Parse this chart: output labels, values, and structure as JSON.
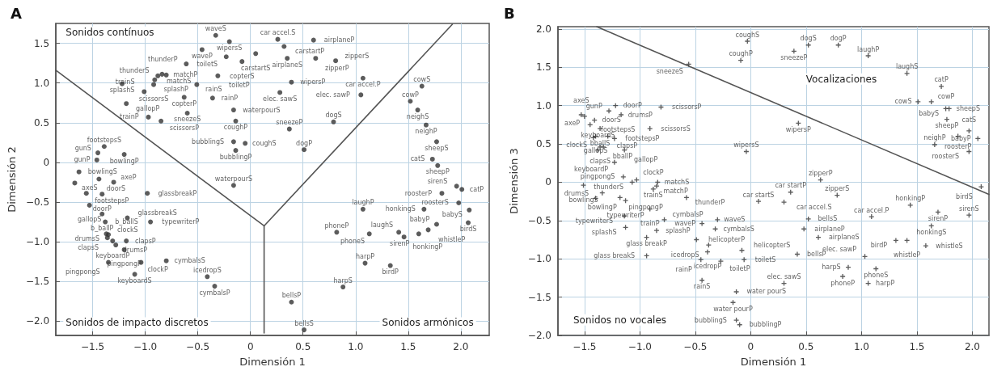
{
  "chart_data": [
    {
      "type": "scatter",
      "title": "A",
      "xlabel": "Dimensión 1",
      "ylabel": "Dimensión 2",
      "marker": "circle",
      "grid": true,
      "xlim": [
        -1.85,
        2.27
      ],
      "ylim": [
        -2.18,
        1.75
      ],
      "xticks": [
        {
          "value": -1.5,
          "label": "−1.5"
        },
        {
          "value": -1,
          "label": "−1.0"
        },
        {
          "value": -0.5,
          "label": "−0.5"
        },
        0,
        0.5,
        {
          "value": 1,
          "label": "1.0"
        },
        1.5,
        {
          "value": 2,
          "label": "2.0"
        }
      ],
      "yticks": [
        {
          "value": -2,
          "label": "−2.0"
        },
        {
          "value": -1.5,
          "label": "−1.5"
        },
        {
          "value": -1,
          "label": "−1.0"
        },
        {
          "value": -0.5,
          "label": "−0.5"
        },
        0,
        0.5,
        {
          "value": 1,
          "label": "1.0"
        },
        1.5
      ],
      "annotations": [
        "Sonidos contínuos",
        "Sonidos de impacto discretos",
        "Sonidos armónicos"
      ],
      "series": [
        {
          "type": "scatter",
          "color": "#333333",
          "x": [
            -0.33,
            -0.2,
            -0.46,
            -0.23,
            0.05,
            -0.08,
            -0.88,
            -0.84,
            -0.8,
            -0.91,
            -1.22,
            -0.92,
            -0.61,
            -0.31,
            -0.51,
            -0.63,
            -0.36,
            -1.01,
            -1.18,
            -0.97,
            -0.6,
            -0.16,
            -0.85,
            -0.14,
            -0.16,
            -0.05,
            -0.14,
            -1.39,
            -1.45,
            -1.2,
            -1.46,
            -1.63,
            -1.67,
            -1.44,
            -1.3,
            -0.16,
            -1.56,
            -1.41,
            -0.98,
            -1.53,
            -1.41,
            -1.17,
            -1.38,
            -0.95,
            -1.37,
            -1.18,
            -1.35,
            -1.36,
            -1.31,
            -1.28,
            -1.2,
            -1.35,
            -1.04,
            -0.8,
            -1.1,
            -0.41,
            -0.34,
            0.26,
            0.32,
            0.6,
            0.35,
            0.62,
            0.81,
            0.39,
            0.28,
            1.07,
            1.05,
            1.63,
            1.52,
            1.59,
            1.67,
            0.79,
            0.37,
            0.51,
            1.77,
            1.73,
            1.78,
            1.96,
            1.82,
            2.01,
            1.98,
            2.08,
            2.07,
            1.77,
            1.69,
            1.6,
            1.41,
            1.46,
            1.65,
            1.07,
            0.82,
            1.13,
            1.09,
            1.33,
            0.88,
            0.39,
            0.51
          ],
          "values": [
            1.6,
            1.52,
            1.42,
            1.33,
            1.37,
            1.27,
            1.09,
            1.11,
            1.1,
            1.04,
            0.99,
            0.98,
            1.24,
            1.09,
            0.98,
            0.82,
            0.81,
            0.89,
            0.74,
            0.57,
            0.62,
            0.66,
            0.52,
            0.52,
            0.26,
            0.24,
            0.15,
            0.2,
            0.12,
            0.1,
            0.03,
            -0.12,
            -0.26,
            -0.21,
            -0.25,
            -0.29,
            -0.39,
            -0.4,
            -0.39,
            -0.54,
            -0.65,
            -0.7,
            -0.75,
            -0.75,
            -0.9,
            -0.99,
            -0.91,
            -0.95,
            -0.99,
            -1.04,
            -1.1,
            -1.26,
            -1.26,
            -1.24,
            -1.41,
            -1.44,
            -1.56,
            1.55,
            1.46,
            1.54,
            1.31,
            1.31,
            1.28,
            1.01,
            0.88,
            1.06,
            0.85,
            0.96,
            0.77,
            0.66,
            0.47,
            0.51,
            0.42,
            0.16,
            0.26,
            0.04,
            -0.04,
            -0.3,
            -0.39,
            -0.34,
            -0.51,
            -0.6,
            -0.76,
            -0.78,
            -0.85,
            -0.9,
            -0.88,
            -0.94,
            -0.59,
            -0.59,
            -0.88,
            -0.9,
            -1.27,
            -1.3,
            -1.57,
            -1.76,
            -2.11
          ],
          "value_labels": [
            "waveS",
            "wipersS",
            "waveP",
            "toiletS",
            "carstartS",
            "copterS",
            "thunderS",
            "matchS",
            "matchP",
            "splashP",
            "splashS",
            "scissorsS",
            "thunderP",
            "toiletP",
            "rainS",
            "copterP",
            "rainP",
            "trainS",
            "gallopP",
            "trainP",
            "sneezeS",
            "waterpourS",
            "scissorsP",
            "coughP",
            "bubblingS",
            "coughS",
            "bubblingP",
            "footstepsS",
            "gunS",
            "bowlingP",
            "gunP",
            "bowlingS",
            "axeS",
            "doorS",
            "axeP",
            "waterpourS",
            "footstepsP",
            "doorP",
            "glassbreakP",
            "gallopS",
            "b_ballP",
            "glassbreakS",
            "b_ballS",
            "typewriterP",
            "drumsS",
            "clapsP",
            "clockS",
            "clapsS",
            "keyboardP",
            "drumsP",
            "pingpongP",
            "pingpongS",
            "clockP",
            "cymbalsS",
            "keyboardS",
            "icedropS",
            "cymbalsP",
            "car accel.S",
            "carstartP",
            "airplaneP",
            "airplaneS",
            "zipperP",
            "zipperS",
            "wipersP",
            "elec. sawS",
            "car accel.P",
            "elec. sawP",
            "cowS",
            "cowP",
            "neighS",
            "neighP",
            "dogS",
            "sneezeP",
            "dogP",
            "sheepS",
            "catS",
            "sheepP",
            "sirenS",
            "roosterP",
            "catP",
            "roosterS",
            "babyS",
            "birdS",
            "babyP",
            "whistleP",
            "sirenP",
            "laughS",
            "honkingP",
            "honkingS",
            "laughP",
            "phoneP",
            "phoneS",
            "harpP",
            "birdP",
            "harpS",
            "bellsP",
            "bellsS"
          ]
        },
        {
          "type": "line",
          "marker": "none",
          "color": "#555555",
          "x": [
            -1.85,
            0.13,
            1.92
          ],
          "values": [
            1.16,
            -0.8,
            1.74
          ]
        },
        {
          "type": "line",
          "marker": "none",
          "color": "#555555",
          "x": [
            0.13,
            0.13
          ],
          "values": [
            -0.8,
            -2.15
          ]
        }
      ]
    },
    {
      "type": "scatter",
      "title": "B",
      "xlabel": "Dimensión 1",
      "ylabel": "Dimensión 3",
      "marker": "cross",
      "grid": true,
      "xlim": [
        -1.74,
        2.15
      ],
      "ylim": [
        -2,
        2.03
      ],
      "xticks": [
        {
          "value": -1.5,
          "label": "−1.5"
        },
        {
          "value": -1,
          "label": "−1.0"
        },
        {
          "value": -0.5,
          "label": "−0.5"
        },
        0,
        0.5,
        {
          "value": 1,
          "label": "1.0"
        },
        1.5,
        {
          "value": 2,
          "label": "2.0"
        }
      ],
      "yticks": [
        {
          "value": -2,
          "label": "−2.0"
        },
        {
          "value": -1.5,
          "label": "−1.5"
        },
        {
          "value": -1,
          "label": "−1.0"
        },
        {
          "value": -0.5,
          "label": "−0.5"
        },
        0,
        0.5,
        {
          "value": 1,
          "label": "1.0"
        },
        1.5,
        {
          "value": 2,
          "label": "2.0"
        }
      ],
      "annotations": [
        "Vocalizaciones",
        "Sonidos no vocales"
      ],
      "series": [
        {
          "type": "scatter",
          "color": "#333333",
          "x": [
            -0.03,
            -0.09,
            -0.56,
            -1.28,
            -1.5,
            -1.41,
            -1.53,
            -1.22,
            -1.17,
            -0.81,
            -1.45,
            -1.36,
            -0.91,
            -1.4,
            -1.29,
            -1.42,
            -1.23,
            -1.36,
            -1.33,
            -1.14,
            -1.38,
            -1.23,
            -0.04,
            -1.03,
            -1.15,
            -1.07,
            -0.84,
            -0.85,
            -1.51,
            -1.34,
            -1.18,
            -0.88,
            -0.58,
            -1.4,
            -1.13,
            -0.91,
            -1.14,
            -0.78,
            -1.13,
            -0.85,
            -0.44,
            -0.3,
            -0.32,
            -0.94,
            -0.49,
            -0.38,
            -0.39,
            -0.08,
            -0.94,
            -0.45,
            -0.27,
            -0.06,
            -0.44,
            -0.13,
            -0.16,
            -0.13,
            -0.1,
            0.52,
            0.39,
            0.79,
            1.06,
            1.41,
            1.72,
            1.51,
            1.63,
            1.76,
            1.79,
            1.77,
            1.66,
            1.87,
            1.97,
            2.05,
            1.97,
            0.43,
            0.63,
            0.36,
            0.78,
            0.07,
            0.3,
            1.44,
            1.69,
            1.97,
            2.08,
            0.52,
            1.09,
            1.63,
            0.48,
            0.61,
            1.31,
            1.41,
            1.58,
            0.42,
            1.03,
            0.88,
            1.13,
            0.83,
            1.06,
            0.3
          ],
          "values": [
            1.84,
            1.59,
            1.54,
            0.93,
            0.86,
            0.81,
            0.88,
            1.0,
            0.88,
            0.98,
            0.75,
            0.7,
            0.7,
            0.6,
            0.6,
            0.58,
            0.57,
            0.46,
            0.46,
            0.42,
            0.42,
            0.26,
            0.4,
            0.03,
            0.07,
            0.0,
            0.0,
            -0.05,
            -0.04,
            -0.14,
            -0.2,
            -0.09,
            -0.2,
            -0.21,
            -0.24,
            -0.35,
            -0.44,
            -0.49,
            -0.59,
            -0.63,
            -0.54,
            -0.49,
            -0.61,
            -0.72,
            -0.75,
            -0.82,
            -0.91,
            -0.89,
            -0.96,
            -1.01,
            -1.03,
            -1.01,
            -1.28,
            -1.43,
            -1.57,
            -1.8,
            -1.86,
            1.79,
            1.71,
            1.79,
            1.65,
            1.42,
            1.25,
            1.05,
            1.05,
            0.96,
            0.96,
            0.82,
            0.49,
            0.6,
            0.67,
            0.57,
            0.4,
            0.77,
            0.03,
            -0.13,
            -0.17,
            -0.25,
            -0.26,
            -0.3,
            -0.39,
            -0.43,
            -0.06,
            -0.48,
            -0.45,
            -0.57,
            -0.61,
            -0.72,
            -0.76,
            -0.76,
            -0.83,
            -0.94,
            -0.97,
            -1.11,
            -1.13,
            -1.23,
            -1.32,
            -1.32
          ],
          "value_labels": [
            "coughS",
            "coughP",
            "sneezeS",
            "gunP",
            "axeP",
            "doorS",
            "axeS",
            "doorP",
            "drumsP",
            "scissorsP",
            "footstepsS",
            "bballS",
            "scissorsS",
            "gallopS",
            "clapsP",
            "clockS",
            "footstepsP",
            "clapsS",
            "bballP",
            "gallopP",
            "keyboardS",
            "keyboardP",
            "wipersS",
            "clockP",
            "pingpongS",
            "thunderS",
            "matchS",
            "matchP",
            "bowlingS",
            "bowlingP",
            "pingpongP",
            "trainS",
            "thunderP",
            "drumsS",
            "typewriterP",
            "trainP",
            "typewriterS",
            "cymbalsP",
            "splashS",
            "splashP",
            "waveP",
            "waveS",
            "cymbalsS",
            "glass breakP",
            "helicopterP",
            "icedropS",
            "icedropP",
            "helicopterS",
            "glass breakS",
            "rainP",
            "toiletP",
            "toiletS",
            "rainS",
            "water pourS",
            "water pourP",
            "bubblingS",
            "bubblingP",
            "dogS",
            "sneezeP",
            "dogP",
            "laughP",
            "laughS",
            "catP",
            "cowS",
            "cowP",
            "babyS",
            "sheepS",
            "sheepP",
            "neighP",
            "roosterP",
            "catS",
            "babyP",
            "roosterS",
            "wipersP",
            "zipperP",
            "car startP",
            "zipperS",
            "car startS",
            "car accel.S",
            "honkingP",
            "sirenP",
            "sirenS",
            "birdS",
            "bellsS",
            "car accel.P",
            "honkingS",
            "airplaneP",
            "airplaneS",
            "birdP",
            "whistleP",
            "whistleS",
            "bellsP",
            "elec. sawP",
            "harpS",
            "phoneS",
            "phoneP",
            "harpP",
            "elec. sawS"
          ]
        },
        {
          "type": "line",
          "marker": "none",
          "color": "#555555",
          "x": [
            -1.39,
            2.15
          ],
          "values": [
            2.03,
            -0.16
          ]
        }
      ]
    }
  ]
}
